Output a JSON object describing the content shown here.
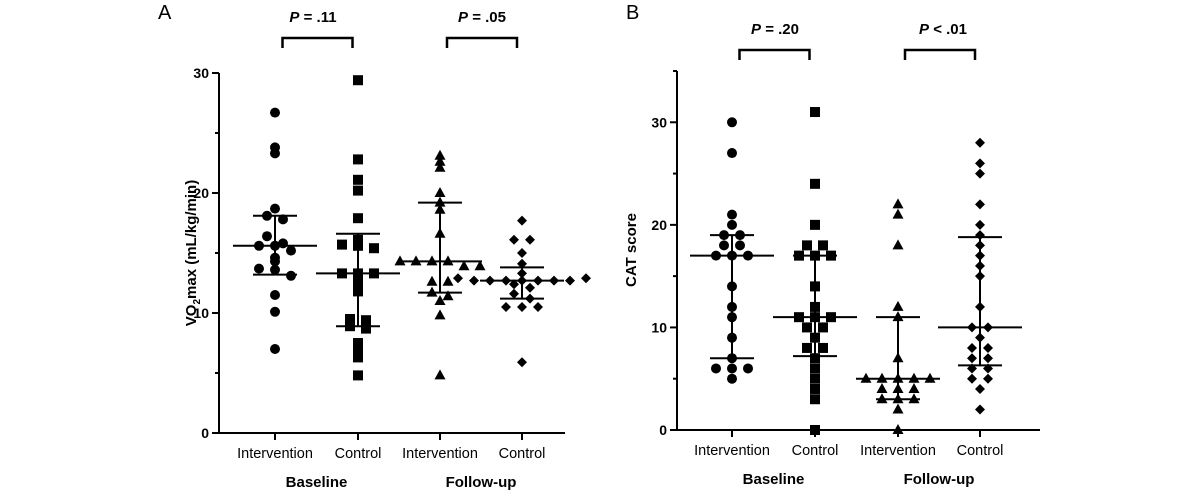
{
  "chart_data": [
    {
      "type": "scatter",
      "panel": "A",
      "title": "",
      "ylabel_main": "VO",
      "ylabel_sub": "2",
      "ylabel_rest": "max (mL/kg/min)",
      "ylabel": "VO2max (mL/kg/min)",
      "ylim": [
        0,
        30
      ],
      "yticks": [
        0,
        10,
        20,
        30
      ],
      "ytick_labels": [
        "0",
        "10",
        "20",
        "30"
      ],
      "minor_yticks": [
        5,
        15,
        25
      ],
      "categories": [
        "Intervention",
        "Control",
        "Intervention",
        "Control"
      ],
      "groups": [
        {
          "label": "Baseline",
          "categories": [
            0,
            1
          ]
        },
        {
          "label": "Follow-up",
          "categories": [
            2,
            3
          ]
        }
      ],
      "comparisons": [
        {
          "label_p": "P",
          "label_rest": " = .11",
          "between": [
            0,
            1
          ]
        },
        {
          "label_p": "P",
          "label_rest": " = .05",
          "between": [
            2,
            3
          ]
        }
      ],
      "series": [
        {
          "name": "Baseline Intervention",
          "marker": "circle",
          "median": 15.6,
          "q1": 13.2,
          "q3": 18.1,
          "values": [
            26.7,
            23.8,
            23.3,
            18.7,
            18.1,
            17.8,
            16.4,
            15.8,
            15.6,
            15.6,
            15.2,
            14.6,
            14.3,
            13.7,
            13.6,
            13.1,
            11.5,
            10.1,
            7.0
          ]
        },
        {
          "name": "Baseline Control",
          "marker": "square",
          "median": 13.3,
          "q1": 8.9,
          "q3": 16.6,
          "values": [
            29.4,
            22.8,
            21.1,
            20.2,
            17.9,
            16.1,
            15.7,
            15.6,
            15.4,
            13.3,
            13.3,
            13.3,
            12.6,
            11.8,
            9.5,
            9.4,
            8.9,
            8.7,
            7.5,
            7.0,
            6.3,
            4.8
          ]
        },
        {
          "name": "Follow-up Intervention",
          "marker": "triangle",
          "median": 14.3,
          "q1": 11.7,
          "q3": 19.2,
          "values": [
            23.1,
            22.6,
            22.1,
            20.0,
            19.2,
            18.6,
            16.6,
            14.3,
            14.3,
            14.3,
            14.3,
            13.9,
            13.9,
            12.6,
            12.6,
            11.7,
            11.4,
            11.0,
            9.8,
            4.8
          ]
        },
        {
          "name": "Follow-up Control",
          "marker": "diamond",
          "median": 12.7,
          "q1": 11.2,
          "q3": 13.8,
          "values": [
            17.7,
            16.1,
            16.1,
            15.0,
            14.1,
            13.3,
            12.9,
            12.7,
            12.7,
            12.7,
            12.7,
            12.7,
            12.7,
            12.7,
            12.9,
            12.4,
            12.1,
            11.6,
            11.2,
            10.5,
            10.5,
            10.5,
            5.9
          ]
        }
      ]
    },
    {
      "type": "scatter",
      "panel": "B",
      "title": "",
      "ylabel": "CAT score",
      "ylim": [
        0,
        35
      ],
      "yticks": [
        0,
        10,
        20,
        30
      ],
      "ytick_labels": [
        "0",
        "10",
        "20",
        "30"
      ],
      "minor_yticks": [
        5,
        15,
        25,
        35
      ],
      "categories": [
        "Intervention",
        "Control",
        "Intervention",
        "Control"
      ],
      "groups": [
        {
          "label": "Baseline",
          "categories": [
            0,
            1
          ]
        },
        {
          "label": "Follow-up",
          "categories": [
            2,
            3
          ]
        }
      ],
      "comparisons": [
        {
          "label_p": "P",
          "label_rest": " = .20",
          "between": [
            0,
            1
          ]
        },
        {
          "label_p": "P",
          "label_rest": " < .01",
          "between": [
            2,
            3
          ]
        }
      ],
      "series": [
        {
          "name": "Baseline Intervention",
          "marker": "circle",
          "median": 17,
          "q1": 7,
          "q3": 19,
          "values": [
            30,
            27,
            21,
            20,
            19,
            19,
            18,
            18,
            17,
            17,
            17,
            14,
            12,
            11,
            9,
            7,
            6,
            6,
            6,
            5
          ]
        },
        {
          "name": "Baseline Control",
          "marker": "square",
          "median": 11,
          "q1": 7.2,
          "q3": 17,
          "values": [
            31,
            24,
            20,
            18,
            18,
            17,
            17,
            17,
            14,
            12,
            11,
            11,
            11,
            10,
            10,
            9,
            8,
            8,
            7,
            6,
            5,
            4,
            3,
            0
          ]
        },
        {
          "name": "Follow-up Intervention",
          "marker": "triangle",
          "median": 5,
          "q1": 3,
          "q3": 11,
          "values": [
            22,
            21,
            18,
            12,
            11,
            7,
            5,
            5,
            5,
            5,
            5,
            4,
            4,
            4,
            3,
            3,
            3,
            2,
            0
          ]
        },
        {
          "name": "Follow-up Control",
          "marker": "diamond",
          "median": 10,
          "q1": 6.3,
          "q3": 18.8,
          "values": [
            28,
            26,
            25,
            22,
            20,
            19,
            18,
            17,
            16,
            15,
            12,
            10,
            10,
            9,
            8,
            8,
            7,
            7,
            6,
            6,
            5,
            5,
            4,
            2
          ]
        }
      ]
    }
  ]
}
